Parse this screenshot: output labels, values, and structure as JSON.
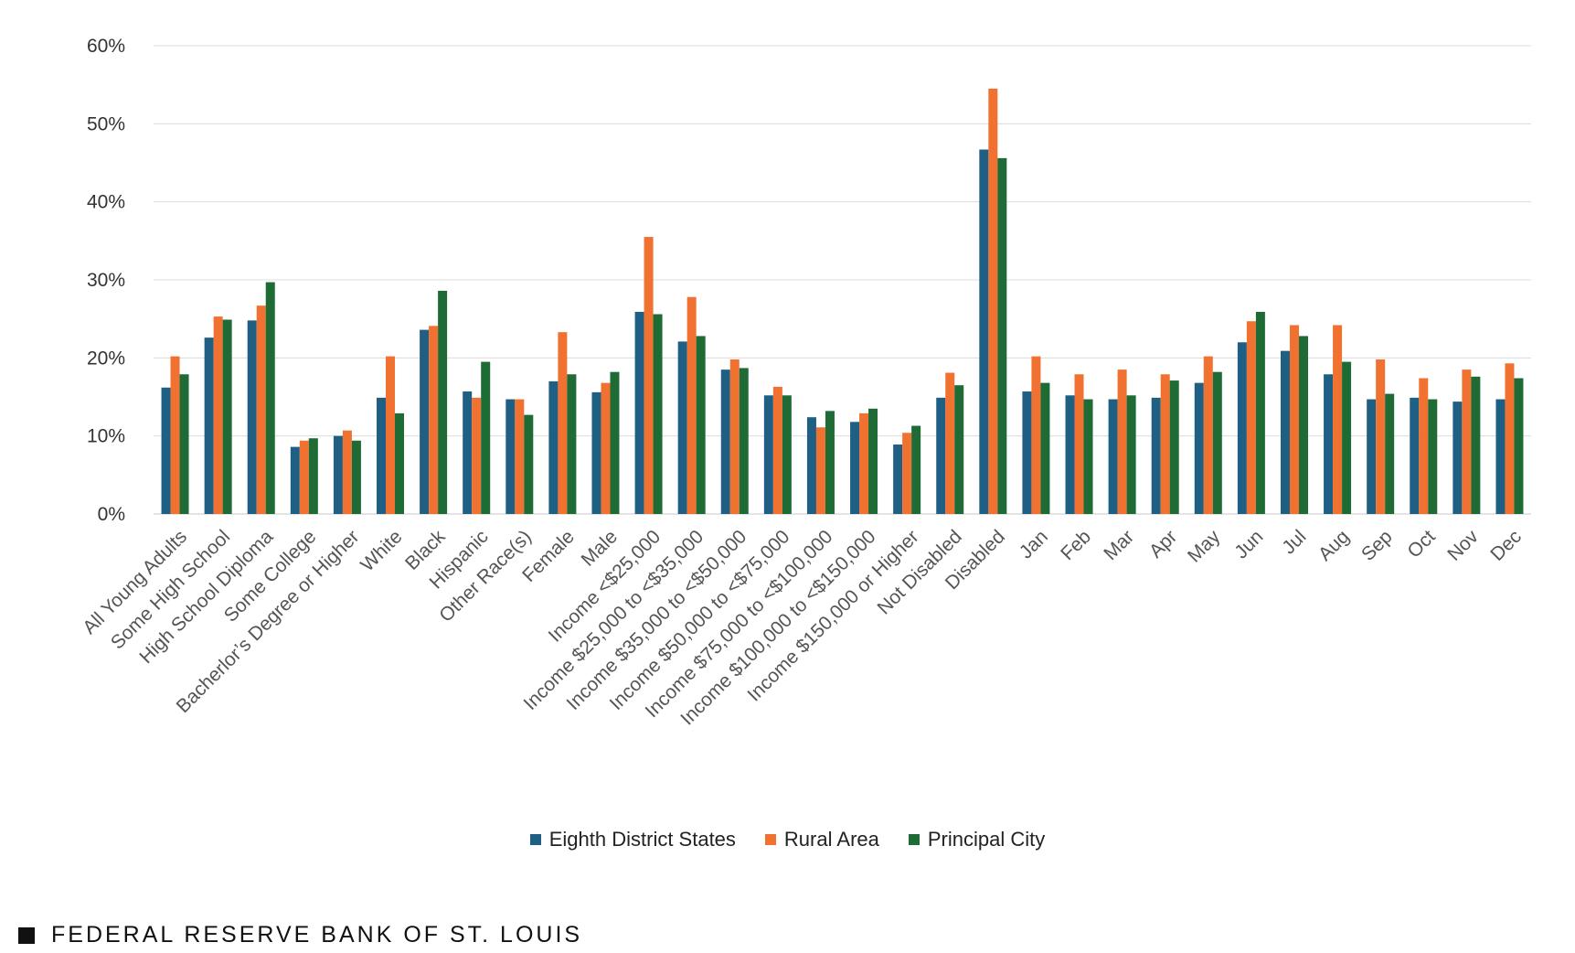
{
  "chart_data": {
    "type": "bar",
    "categories": [
      "All Young Adults",
      "Some High School",
      "High School Diploma",
      "Some College",
      "Bacherlor’s Degree or Higher",
      "White",
      "Black",
      "Hispanic",
      "Other Race(s)",
      "Female",
      "Male",
      "Income <$25,000",
      "Income $25,000 to <$35,000",
      "Income $35,000 to <$50,000",
      "Income $50,000 to <$75,000",
      "Income $75,000 to <$100,000",
      "Income $100,000 to <$150,000",
      "Income $150,000 or Higher",
      "Not Disabled",
      "Disabled",
      "Jan",
      "Feb",
      "Mar",
      "Apr",
      "May",
      "Jun",
      "Jul",
      "Aug",
      "Sep",
      "Oct",
      "Nov",
      "Dec"
    ],
    "series": [
      {
        "name": "Eighth District States",
        "color": "#1f5f84",
        "values": [
          16.2,
          22.6,
          24.8,
          8.6,
          10.0,
          14.9,
          23.6,
          15.7,
          14.7,
          17.0,
          15.6,
          25.9,
          22.1,
          18.5,
          15.2,
          12.4,
          11.8,
          8.9,
          14.9,
          46.7,
          15.7,
          15.2,
          14.7,
          14.9,
          16.8,
          22.0,
          20.9,
          17.9,
          14.7,
          14.9,
          14.4,
          14.7
        ]
      },
      {
        "name": "Rural Area",
        "color": "#f07130",
        "values": [
          20.2,
          25.3,
          26.7,
          9.4,
          10.7,
          20.2,
          24.1,
          14.9,
          14.7,
          23.3,
          16.8,
          35.5,
          27.8,
          19.8,
          16.3,
          11.1,
          12.9,
          10.4,
          18.1,
          54.5,
          20.2,
          17.9,
          18.5,
          17.9,
          20.2,
          24.7,
          24.2,
          24.2,
          19.8,
          17.4,
          18.5,
          19.3
        ]
      },
      {
        "name": "Principal City",
        "color": "#1e6b35",
        "values": [
          17.9,
          24.9,
          29.7,
          9.7,
          9.4,
          12.9,
          28.6,
          19.5,
          12.7,
          17.9,
          18.2,
          25.6,
          22.8,
          18.7,
          15.2,
          13.2,
          13.5,
          11.3,
          16.5,
          45.6,
          16.8,
          14.7,
          15.2,
          17.1,
          18.2,
          25.9,
          22.8,
          19.5,
          15.4,
          14.7,
          17.6,
          17.4
        ]
      }
    ],
    "y_ticks": [
      "0%",
      "10%",
      "20%",
      "30%",
      "40%",
      "50%",
      "60%"
    ],
    "ylim": [
      0,
      60
    ],
    "grid": true,
    "legend_position": "bottom-center"
  },
  "footer": {
    "text": "FEDERAL RESERVE BANK OF ST. LOUIS"
  }
}
